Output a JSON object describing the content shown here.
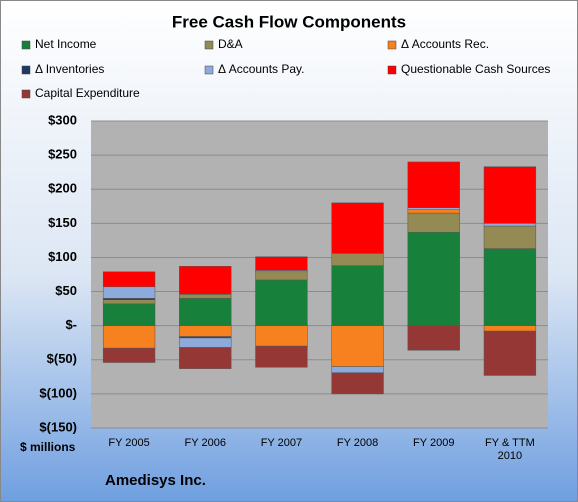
{
  "chart_data": {
    "type": "stacked-bar",
    "title": "Free Cash Flow Components",
    "ylabel": "$ millions",
    "company": "Amedisys Inc.",
    "categories": [
      "FY 2005",
      "FY 2006",
      "FY 2007",
      "FY 2008",
      "FY 2009",
      "FY & TTM 2010"
    ],
    "series": [
      {
        "name": "Net Income",
        "color": "#17813b",
        "values": [
          32,
          40,
          67,
          88,
          137,
          113
        ]
      },
      {
        "name": "D&A",
        "color": "#948a54",
        "values": [
          6,
          6,
          12,
          18,
          28,
          33
        ]
      },
      {
        "name": "Δ Accounts Rec.",
        "color": "#f7801f",
        "values": [
          -33,
          -16,
          -30,
          -60,
          5,
          -8
        ]
      },
      {
        "name": "Δ Inventories",
        "color": "#1f3864",
        "values": [
          2,
          -2,
          0,
          0,
          0,
          0
        ]
      },
      {
        "name": "Δ Accounts Pay.",
        "color": "#8eaadb",
        "values": [
          17,
          -14,
          2,
          -9,
          3,
          4
        ]
      },
      {
        "name": "Questionable Cash Sources",
        "color": "#ff0000",
        "values": [
          22,
          41,
          20,
          74,
          67,
          83
        ]
      },
      {
        "name": "Capital Expenditure",
        "color": "#953735",
        "values": [
          -21,
          -31,
          -31,
          -31,
          -36,
          -65
        ]
      }
    ],
    "ylim": [
      -150,
      300
    ],
    "yticks": [
      {
        "value": -150,
        "label": "$(150)"
      },
      {
        "value": -100,
        "label": "$(100)"
      },
      {
        "value": -50,
        "label": "$(50)"
      },
      {
        "value": 0,
        "label": "$-"
      },
      {
        "value": 50,
        "label": "$50"
      },
      {
        "value": 100,
        "label": "$100"
      },
      {
        "value": 150,
        "label": "$150"
      },
      {
        "value": 200,
        "label": "$200"
      },
      {
        "value": 250,
        "label": "$250"
      },
      {
        "value": 300,
        "label": "$300"
      }
    ],
    "grid": true
  }
}
